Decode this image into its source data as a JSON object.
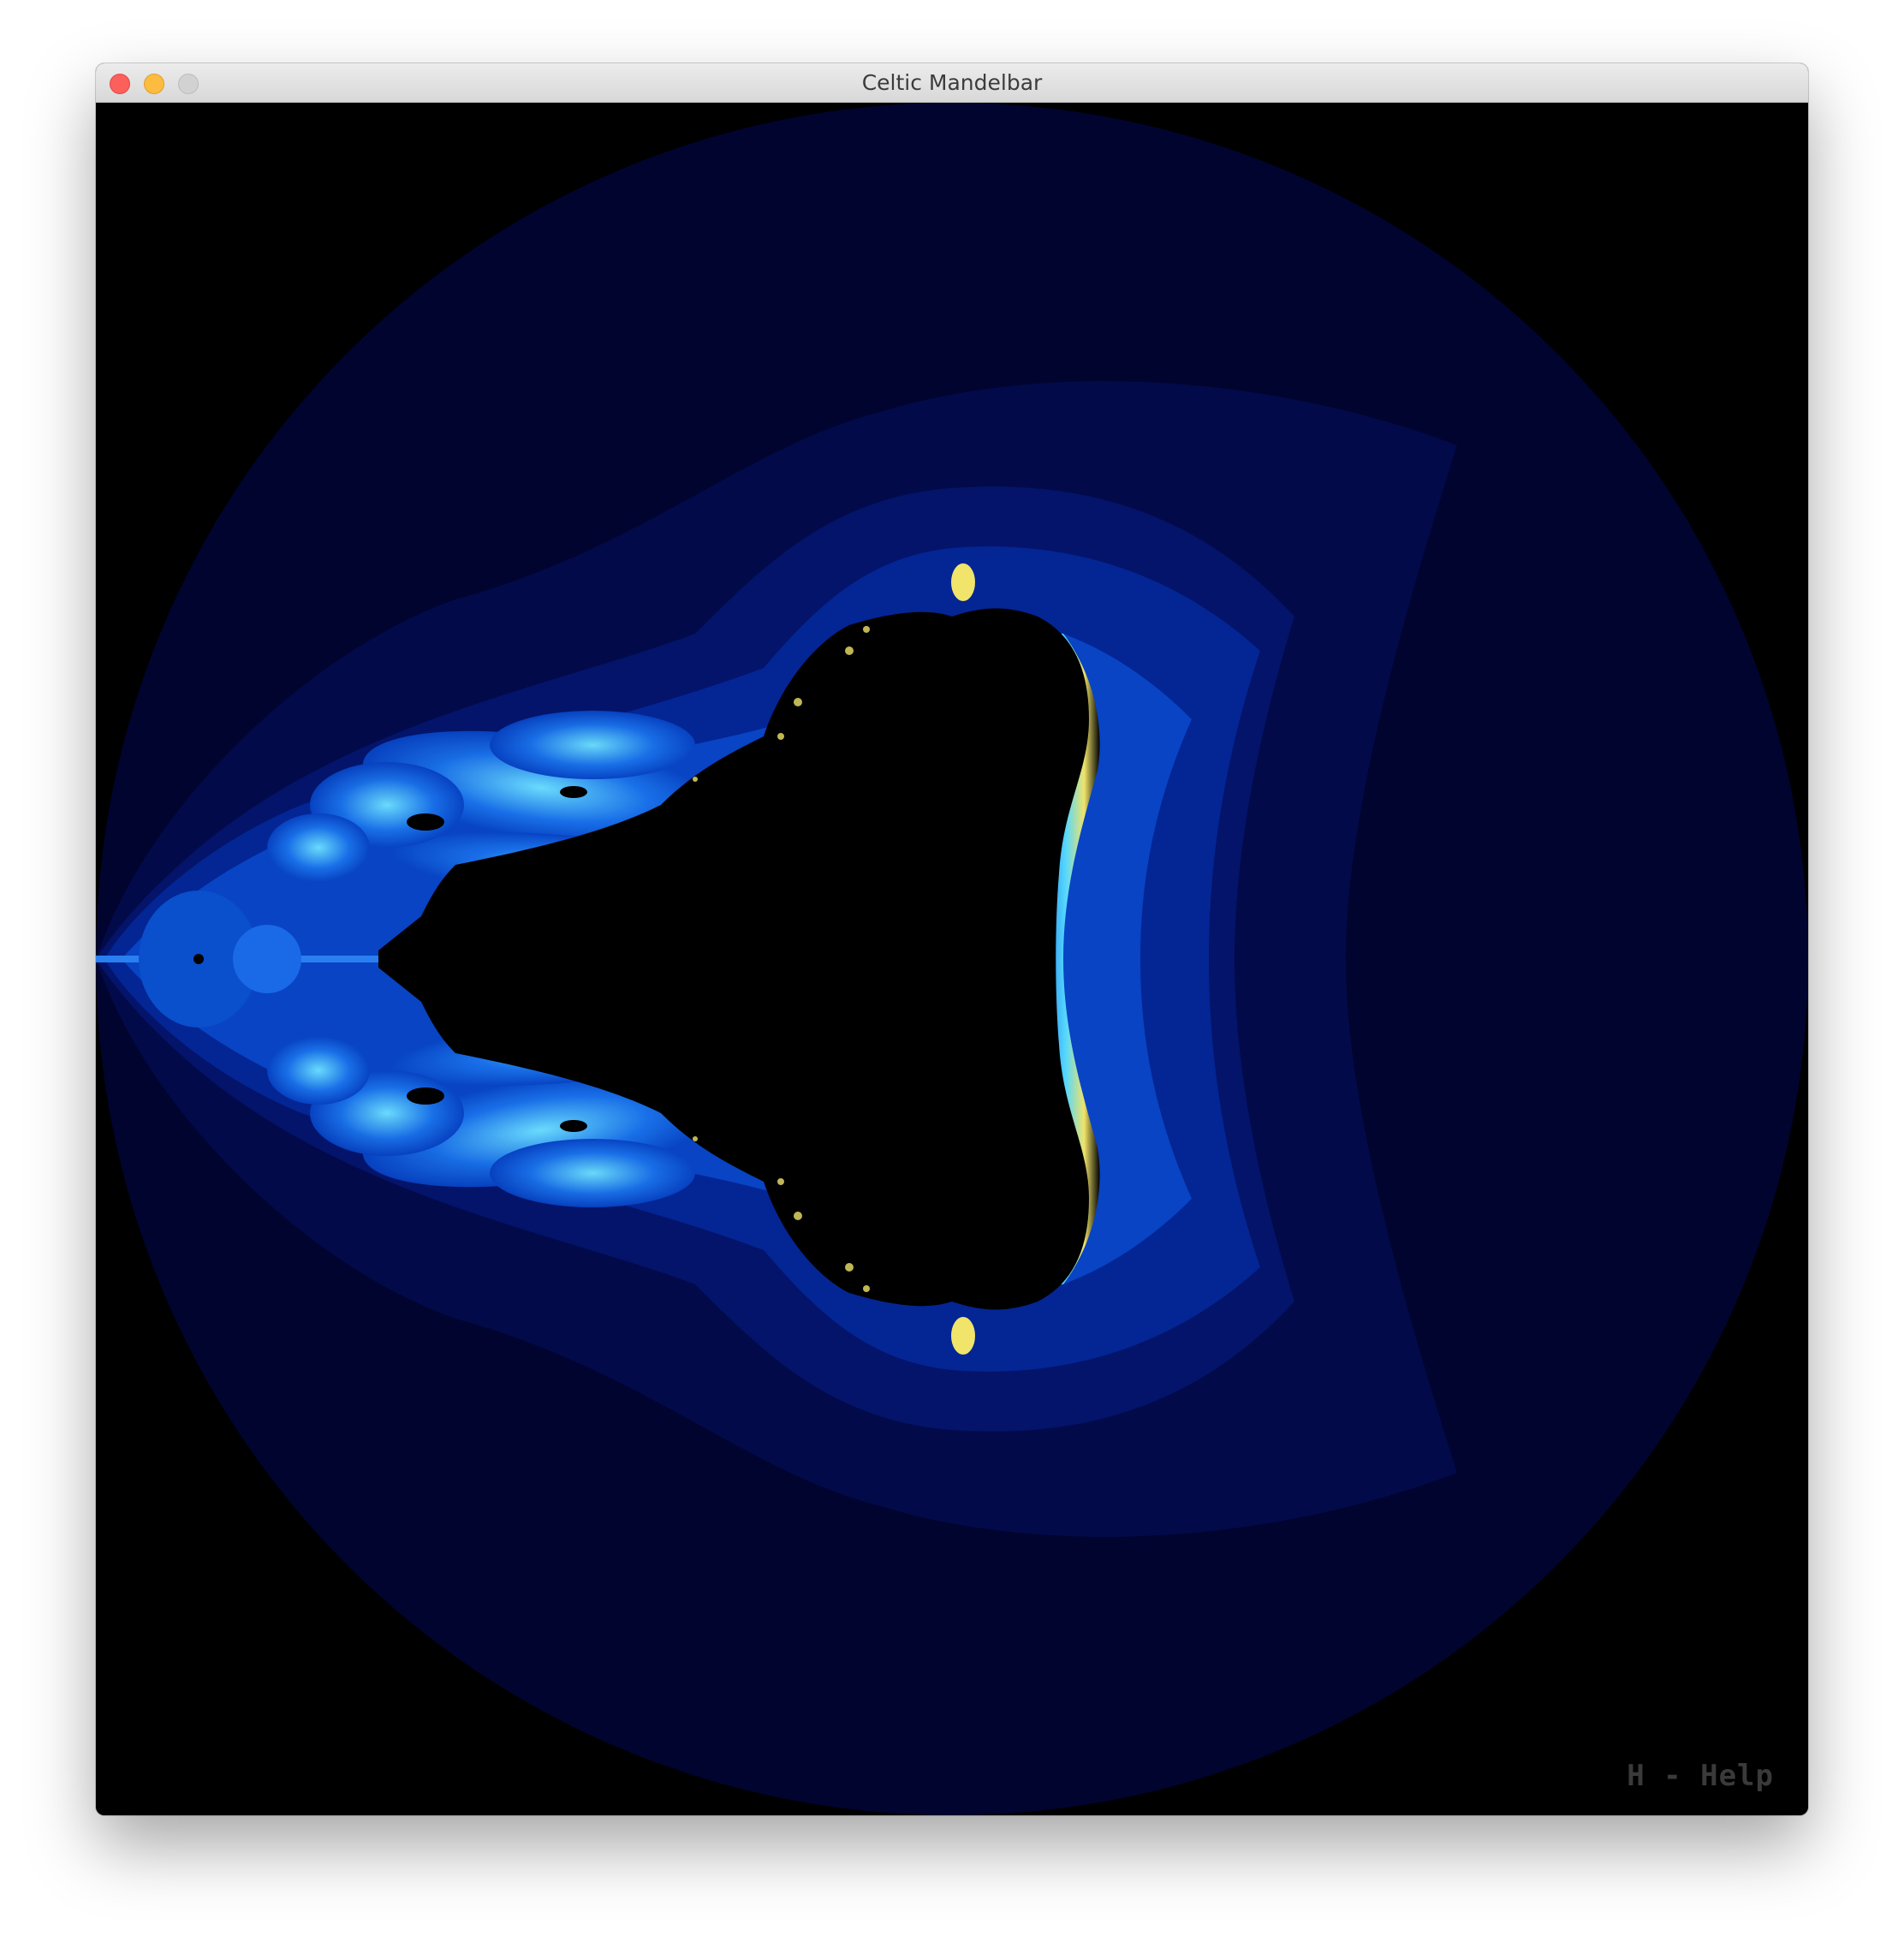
{
  "window": {
    "title": "Celtic Mandelbar"
  },
  "overlay": {
    "help_hint": "H - Help"
  },
  "colors": {
    "background": "#000000",
    "band_outer": "#01042e",
    "band_2": "#020a4a",
    "band_3": "#03146a",
    "band_4": "#042594",
    "band_5": "#0844c4",
    "band_6": "#1a6ae8",
    "edge_cyan": "#54d8ff",
    "edge_yellow": "#f0e46a",
    "set_interior": "#000000",
    "traffic_close": "#fc605c",
    "traffic_minimize": "#fdbc40",
    "traffic_zoom": "#d2d2d2"
  },
  "icons": {
    "close": "close-icon",
    "minimize": "minimize-icon",
    "zoom": "zoom-icon"
  }
}
